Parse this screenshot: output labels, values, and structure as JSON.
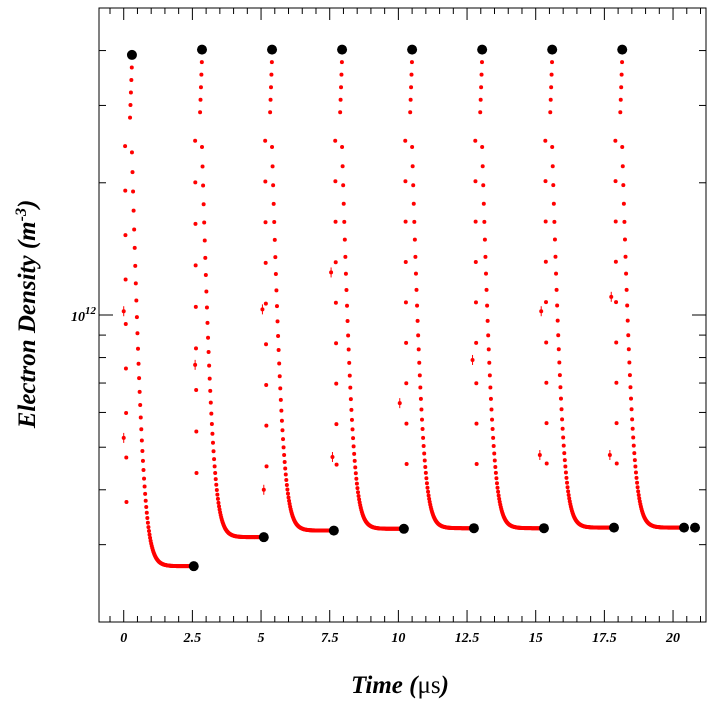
{
  "chart_data": {
    "type": "scatter",
    "xlabel": "Time",
    "xlabel_unit": "μs",
    "ylabel": "Electron Density",
    "ylabel_unit_base": "m",
    "ylabel_unit_exp": "-3",
    "x_scale": "linear",
    "y_scale": "log",
    "xlim": [
      -0.9,
      21.2
    ],
    "ylim": [
      200000000000.0,
      5000000000000.0
    ],
    "x_ticks": [
      {
        "value": 0,
        "label": "0"
      },
      {
        "value": 2.5,
        "label": "2.5"
      },
      {
        "value": 5,
        "label": "5"
      },
      {
        "value": 7.5,
        "label": "7.5"
      },
      {
        "value": 10,
        "label": "10"
      },
      {
        "value": 12.5,
        "label": "12.5"
      },
      {
        "value": 15,
        "label": "15"
      },
      {
        "value": 17.5,
        "label": "17.5"
      },
      {
        "value": 20,
        "label": "20"
      }
    ],
    "y_tick_label": {
      "value": 1000000000000.0,
      "base": "10",
      "exp": "12"
    },
    "y_minor_ticks": [
      300000000000.0,
      400000000000.0,
      500000000000.0,
      600000000000.0,
      700000000000.0,
      800000000000.0,
      900000000000.0,
      2000000000000.0,
      3000000000000.0,
      4000000000000.0
    ],
    "grid": false,
    "series_colors": {
      "decay": "#ff0000",
      "markers": "#000000"
    },
    "decay_series": [
      {
        "t0": 0.0,
        "peak": 3910000000000.0,
        "floor": 268000000000.0,
        "tau": 0.17
      },
      {
        "t0": 2.55,
        "peak": 4020000000000.0,
        "floor": 312000000000.0,
        "tau": 0.17
      },
      {
        "t0": 5.1,
        "peak": 4020000000000.0,
        "floor": 323000000000.0,
        "tau": 0.17
      },
      {
        "t0": 7.65,
        "peak": 4020000000000.0,
        "floor": 326000000000.0,
        "tau": 0.17
      },
      {
        "t0": 10.2,
        "peak": 4020000000000.0,
        "floor": 327000000000.0,
        "tau": 0.17
      },
      {
        "t0": 12.75,
        "peak": 4020000000000.0,
        "floor": 327000000000.0,
        "tau": 0.17
      },
      {
        "t0": 15.3,
        "peak": 4020000000000.0,
        "floor": 328000000000.0,
        "tau": 0.17
      },
      {
        "t0": 17.85,
        "peak": 4020000000000.0,
        "floor": 328000000000.0,
        "tau": 0.17
      }
    ],
    "error_points": [
      {
        "x": 0.0,
        "y": 1020000000000.0
      },
      {
        "x": 0.0,
        "y": 525000000000.0
      },
      {
        "x": 2.6,
        "y": 770000000000.0
      },
      {
        "x": 5.05,
        "y": 1030000000000.0
      },
      {
        "x": 5.1,
        "y": 400000000000.0
      },
      {
        "x": 7.55,
        "y": 1250000000000.0
      },
      {
        "x": 7.6,
        "y": 475000000000.0
      },
      {
        "x": 10.05,
        "y": 630000000000.0
      },
      {
        "x": 12.7,
        "y": 790000000000.0
      },
      {
        "x": 15.2,
        "y": 1020000000000.0
      },
      {
        "x": 15.15,
        "y": 480000000000.0
      },
      {
        "x": 17.75,
        "y": 1100000000000.0
      },
      {
        "x": 17.7,
        "y": 480000000000.0
      }
    ],
    "peak_markers": [
      {
        "x": 0.3,
        "y": 3910000000000.0
      },
      {
        "x": 2.85,
        "y": 4020000000000.0
      },
      {
        "x": 5.4,
        "y": 4020000000000.0
      },
      {
        "x": 7.95,
        "y": 4020000000000.0
      },
      {
        "x": 10.5,
        "y": 4020000000000.0
      },
      {
        "x": 13.05,
        "y": 4020000000000.0
      },
      {
        "x": 15.6,
        "y": 4020000000000.0
      },
      {
        "x": 18.15,
        "y": 4020000000000.0
      }
    ],
    "floor_markers": [
      {
        "x": 2.55,
        "y": 268000000000.0
      },
      {
        "x": 5.1,
        "y": 312000000000.0
      },
      {
        "x": 7.65,
        "y": 323000000000.0
      },
      {
        "x": 10.2,
        "y": 326000000000.0
      },
      {
        "x": 12.75,
        "y": 327000000000.0
      },
      {
        "x": 15.3,
        "y": 327000000000.0
      },
      {
        "x": 17.85,
        "y": 328000000000.0
      },
      {
        "x": 20.4,
        "y": 328000000000.0
      },
      {
        "x": 20.8,
        "y": 328000000000.0
      }
    ]
  }
}
